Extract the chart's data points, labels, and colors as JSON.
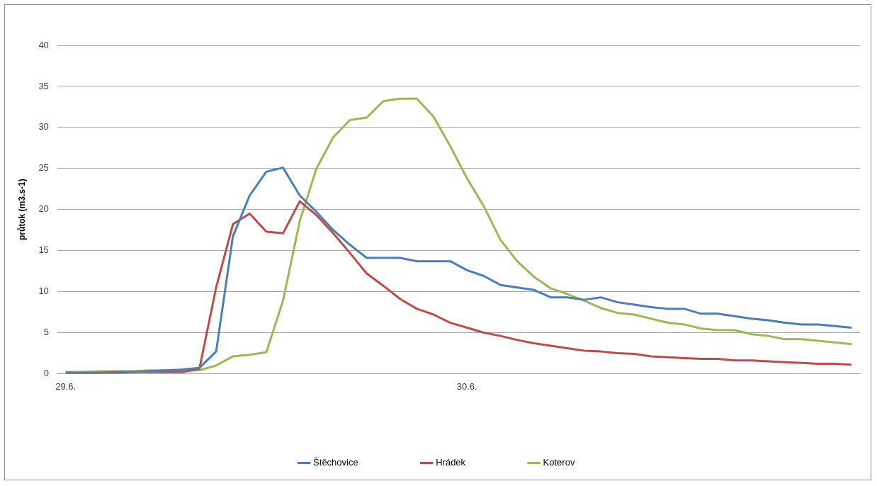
{
  "chart_data": {
    "type": "line",
    "ylabel": "průtok (m3.s-1)",
    "categories": [
      "29.6.",
      null,
      null,
      null,
      null,
      null,
      null,
      null,
      null,
      null,
      null,
      null,
      null,
      null,
      null,
      null,
      null,
      null,
      null,
      null,
      null,
      null,
      null,
      null,
      "30.6.",
      null,
      null,
      null,
      null,
      null,
      null,
      null,
      null,
      null,
      null,
      null,
      null,
      null,
      null,
      null,
      null,
      null,
      null,
      null,
      null,
      null,
      null,
      null
    ],
    "series": [
      {
        "name": "Štěchovice",
        "color": "#4a7ebb",
        "values": [
          0.1,
          0.1,
          0.1,
          0.1,
          0.2,
          0.3,
          0.4,
          0.5,
          0.7,
          2.7,
          16.7,
          21.7,
          24.6,
          25.1,
          21.7,
          19.7,
          17.5,
          15.7,
          14.1,
          14.1,
          14.1,
          13.7,
          13.7,
          13.7,
          12.6,
          11.9,
          10.8,
          10.5,
          10.2,
          9.3,
          9.3,
          9,
          9.3,
          8.7,
          8.4,
          8.1,
          7.9,
          7.9,
          7.3,
          7.3,
          7,
          6.7,
          6.5,
          6.2,
          6,
          6,
          5.8,
          5.6
        ]
      },
      {
        "name": "Hrádek",
        "color": "#be4b48",
        "values": [
          0.1,
          0.1,
          0.1,
          0.2,
          0.2,
          0.2,
          0.2,
          0.2,
          0.6,
          10.5,
          18.2,
          19.5,
          17.3,
          17.1,
          21,
          19.3,
          17.1,
          14.7,
          12.2,
          10.7,
          9.1,
          7.9,
          7.2,
          6.2,
          5.6,
          5,
          4.6,
          4.1,
          3.7,
          3.4,
          3.1,
          2.8,
          2.7,
          2.5,
          2.4,
          2.1,
          2,
          1.9,
          1.8,
          1.8,
          1.6,
          1.6,
          1.5,
          1.4,
          1.3,
          1.2,
          1.2,
          1.1
        ]
      },
      {
        "name": "Koterov",
        "color": "#98b954",
        "values": [
          0.2,
          0.2,
          0.3,
          0.3,
          0.3,
          0.4,
          0.4,
          0.4,
          0.4,
          1,
          2.1,
          2.3,
          2.6,
          8.9,
          18.6,
          25,
          28.8,
          30.9,
          31.2,
          33.2,
          33.5,
          33.5,
          31.3,
          27.7,
          23.8,
          20.4,
          16.3,
          13.7,
          11.8,
          10.4,
          9.7,
          8.9,
          8,
          7.4,
          7.2,
          6.7,
          6.2,
          6,
          5.5,
          5.3,
          5.3,
          4.8,
          4.6,
          4.2,
          4.2,
          4,
          3.8,
          3.6
        ]
      }
    ],
    "ylim": [
      0,
      40
    ],
    "yticks": [
      0,
      5,
      10,
      15,
      20,
      25,
      30,
      35,
      40
    ],
    "grid": "y",
    "legend": "bottom",
    "marker": "none",
    "line_style": "solid"
  }
}
